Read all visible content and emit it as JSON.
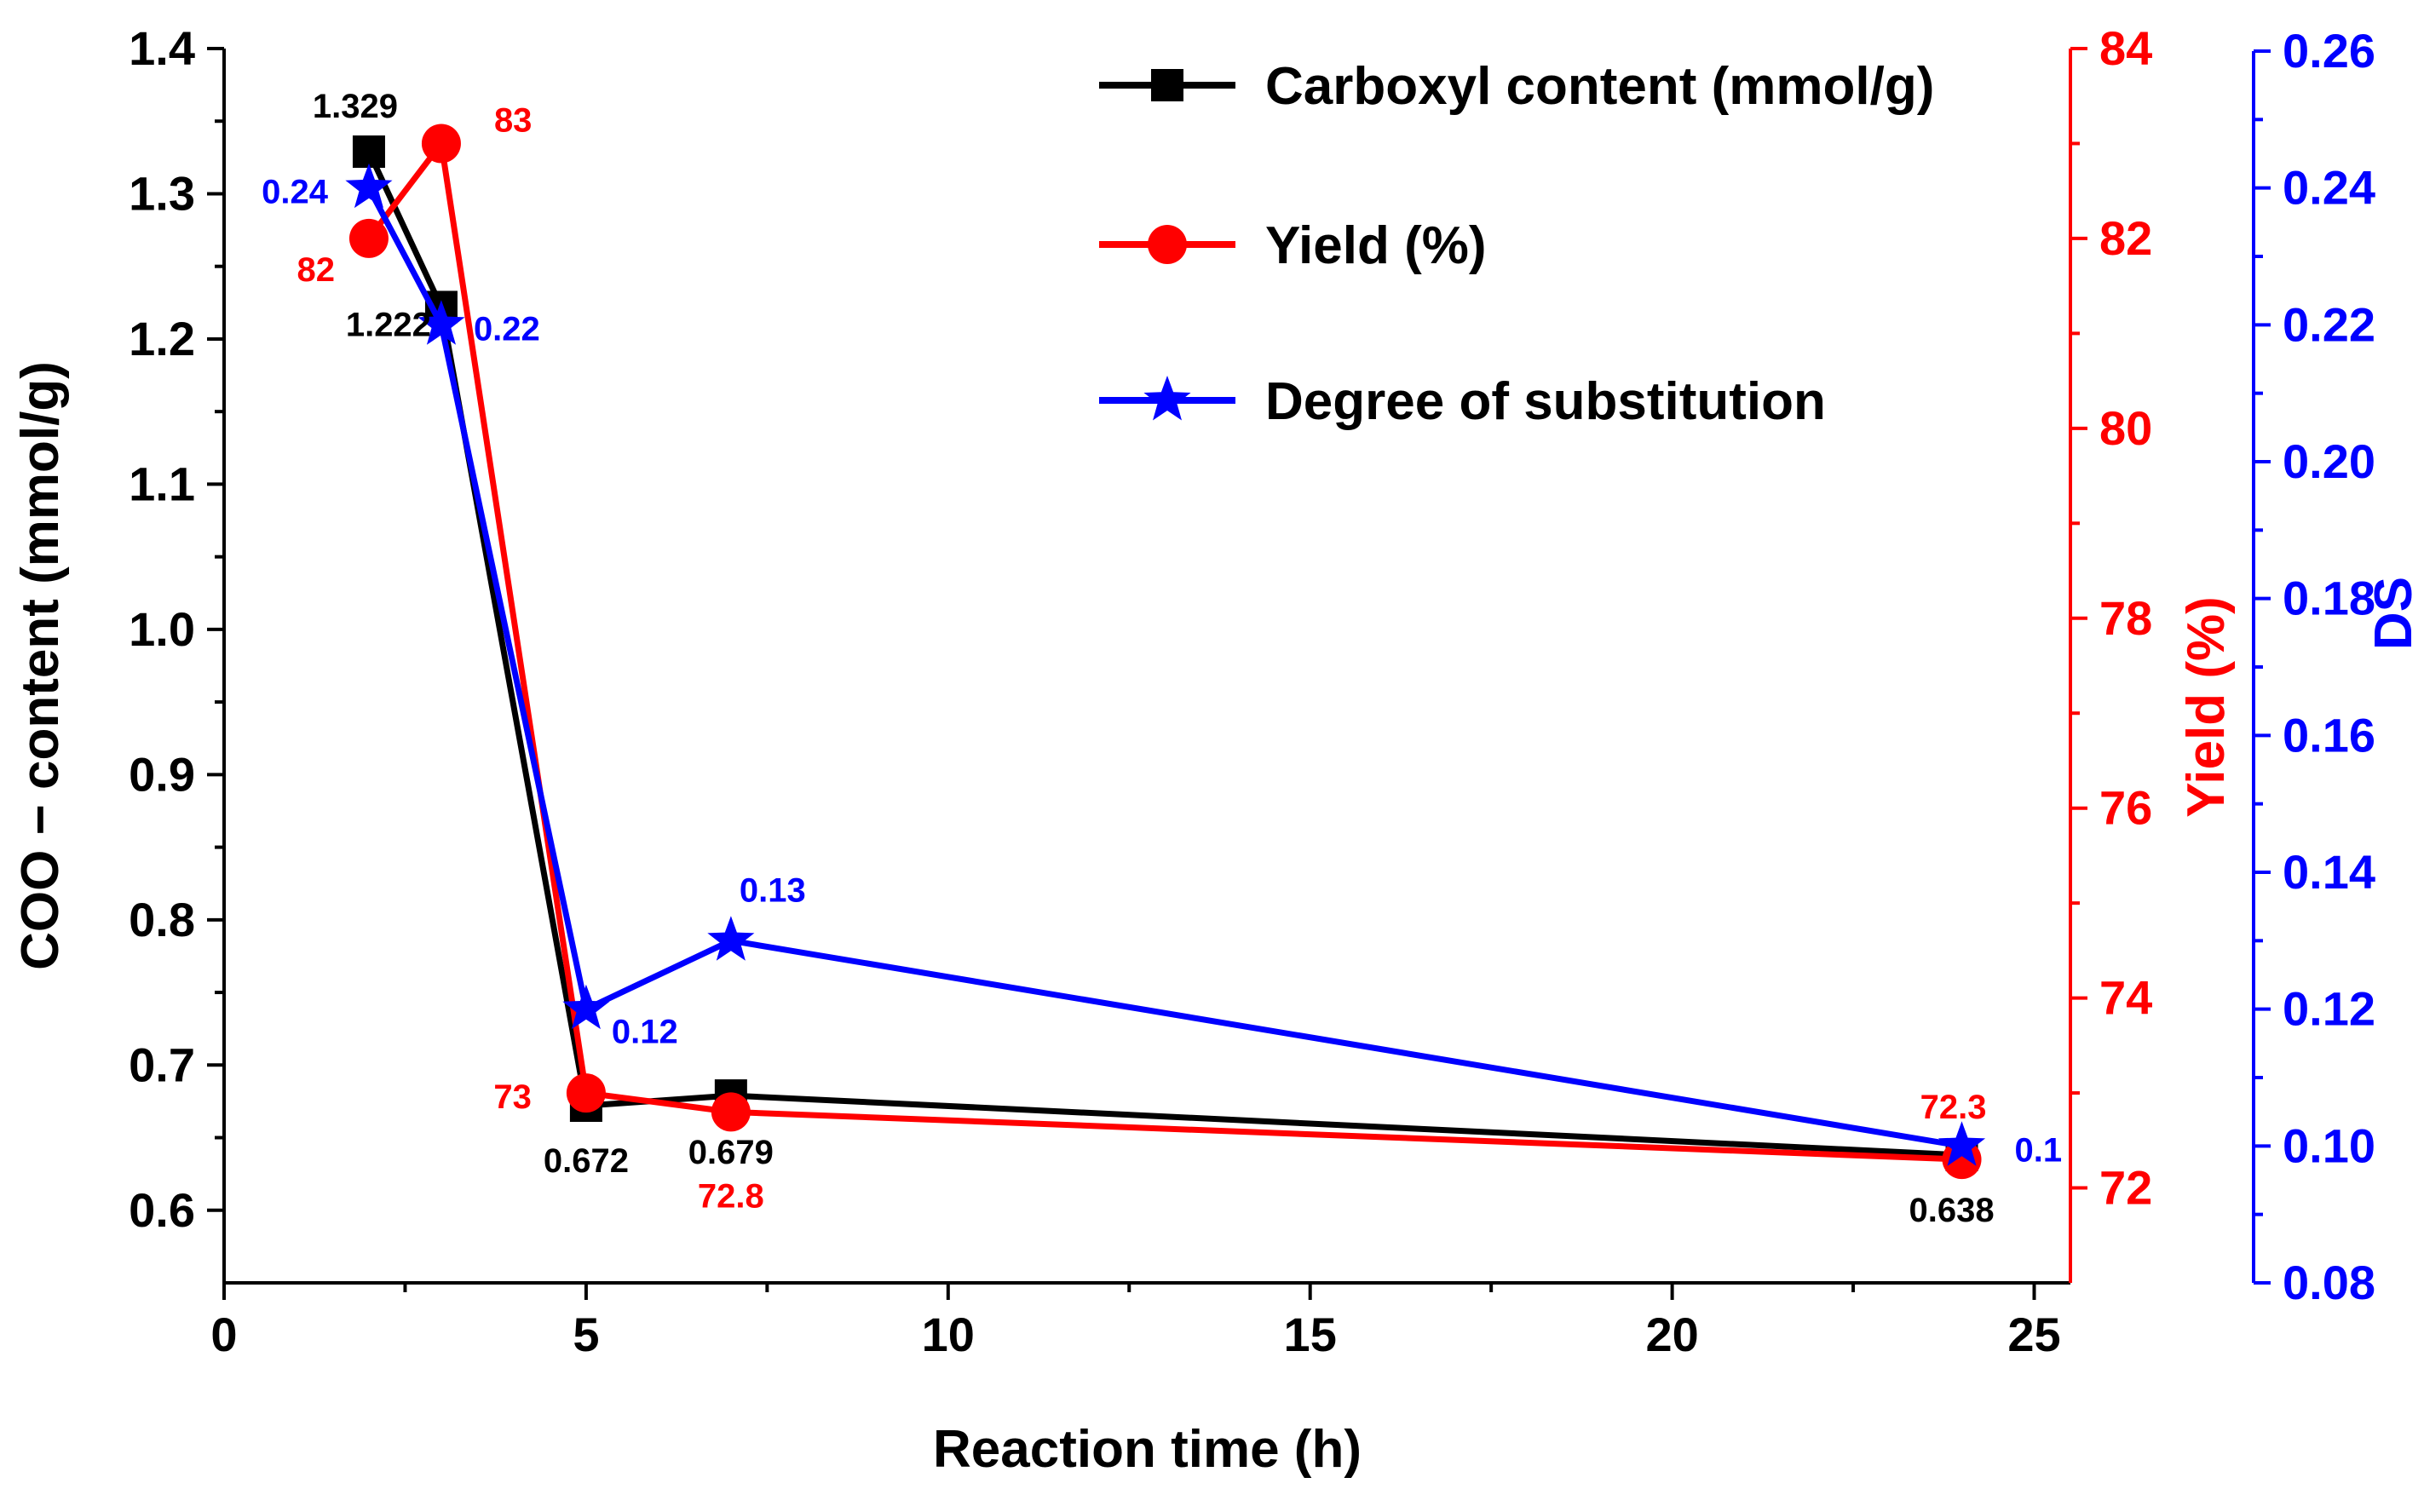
{
  "chart_data": {
    "type": "line",
    "x": [
      2,
      3,
      5,
      7,
      24
    ],
    "xlabel": "Reaction time (h)",
    "xlim": [
      0,
      25.5
    ],
    "xticks": [
      0,
      5,
      10,
      15,
      20,
      25
    ],
    "xtick_labels": [
      "0",
      "5",
      "10",
      "15",
      "20",
      "25"
    ],
    "axes": {
      "left": {
        "label": "COO − content (mmol/g)",
        "color": "#000000",
        "range": [
          0.55,
          1.4
        ],
        "ticks": [
          0.6,
          0.7,
          0.8,
          0.9,
          1.0,
          1.1,
          1.2,
          1.3,
          1.4
        ],
        "tick_labels": [
          "0.6",
          "0.7",
          "0.8",
          "0.9",
          "1.0",
          "1.1",
          "1.2",
          "1.3",
          "1.4"
        ]
      },
      "right_yield": {
        "label": "Yield (%)",
        "color": "#ff0000",
        "range": [
          71.0,
          84.0
        ],
        "ticks": [
          72,
          74,
          76,
          78,
          80,
          82,
          84
        ],
        "tick_labels": [
          "72",
          "74",
          "76",
          "78",
          "80",
          "82",
          "84"
        ]
      },
      "right_ds": {
        "label": "DS",
        "color": "#0000ff",
        "range": [
          0.08,
          0.26
        ],
        "ticks": [
          0.08,
          0.1,
          0.12,
          0.14,
          0.16,
          0.18,
          0.2,
          0.22,
          0.24,
          0.26
        ],
        "tick_labels": [
          "0.08",
          "0.10",
          "0.12",
          "0.14",
          "0.16",
          "0.18",
          "0.20",
          "0.22",
          "0.24",
          "0.26"
        ]
      }
    },
    "series": [
      {
        "name": "Carboxyl content (mmol/g)",
        "axis": "left",
        "color": "#000000",
        "marker": "square",
        "values": [
          1.329,
          1.222,
          0.672,
          0.679,
          0.638
        ],
        "labels": [
          "1.329",
          "1.222",
          "0.672",
          "0.679",
          "0.638"
        ]
      },
      {
        "name": "Yield (%)",
        "axis": "right_yield",
        "color": "#ff0000",
        "marker": "circle",
        "values": [
          82,
          83,
          73,
          72.8,
          72.3
        ],
        "labels": [
          "82",
          "83",
          "73",
          "72.8",
          "72.3"
        ]
      },
      {
        "name": "Degree of substitution",
        "axis": "right_ds",
        "color": "#0000ff",
        "marker": "star",
        "values": [
          0.24,
          0.22,
          0.12,
          0.13,
          0.1
        ],
        "labels": [
          "0.24",
          "0.22",
          "0.12",
          "0.13",
          "0.1"
        ]
      }
    ],
    "legend_position": "top-right"
  }
}
